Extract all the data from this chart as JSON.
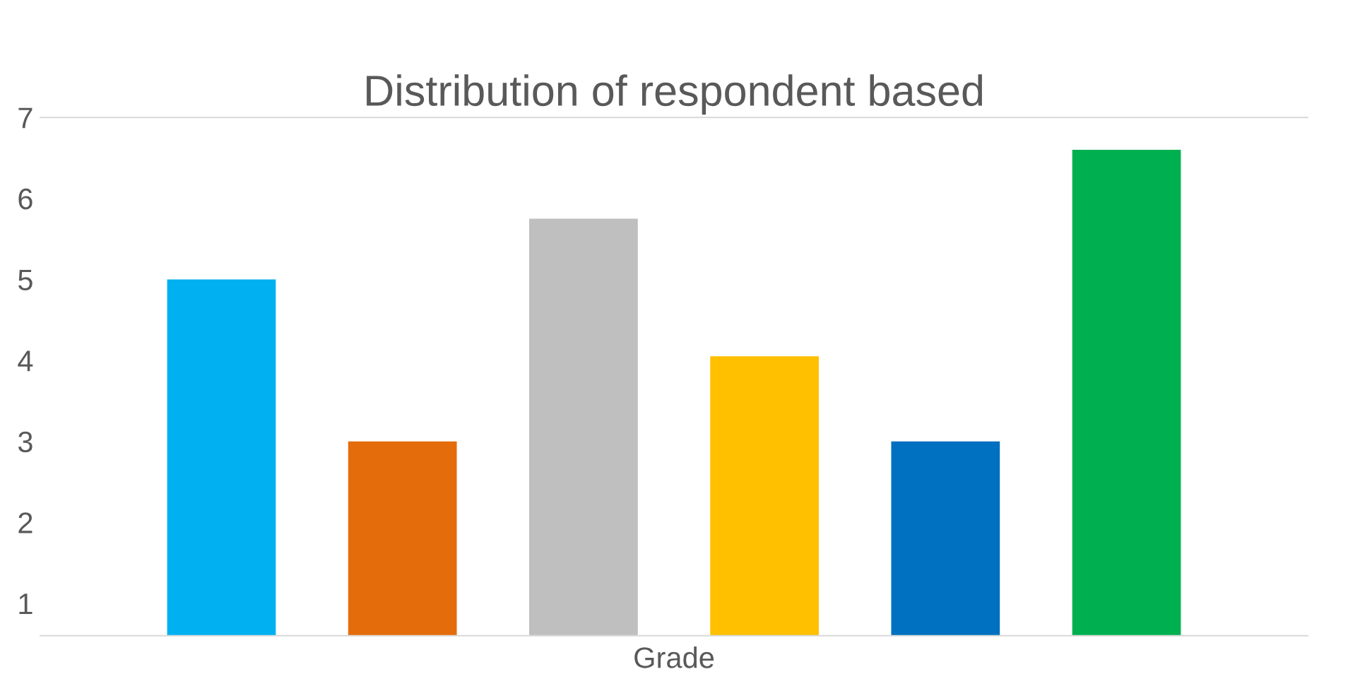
{
  "chart_data": {
    "type": "bar",
    "title": "Distribution of respondent based",
    "xlabel": "Grade",
    "categories": [
      null,
      null,
      null,
      null,
      null,
      null
    ],
    "values": [
      5.0,
      3.0,
      5.75,
      4.05,
      3.0,
      6.6
    ],
    "colors": [
      "#00b0f0",
      "#e46c0a",
      "#bfbfbf",
      "#ffc000",
      "#0070c0",
      "#00b050"
    ],
    "ylim": [
      0.6,
      7
    ],
    "yticks": [
      1,
      2,
      3,
      4,
      5,
      6,
      7
    ],
    "grid": false
  }
}
